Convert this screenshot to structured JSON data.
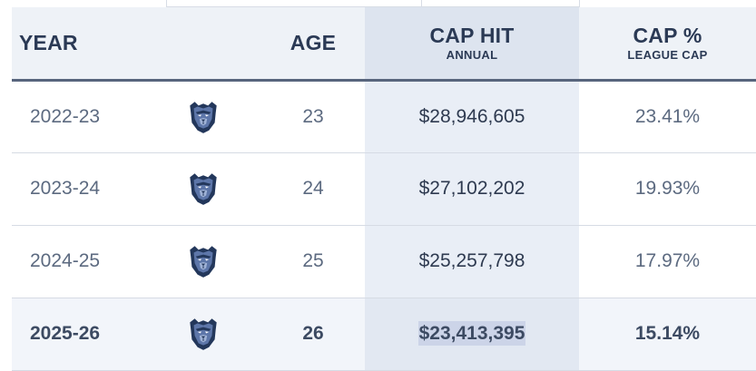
{
  "table": {
    "headers": {
      "year": "YEAR",
      "team": "",
      "age": "AGE",
      "cap_hit": "CAP HIT",
      "cap_hit_sub": "ANNUAL",
      "cap_pct": "CAP %",
      "cap_pct_sub": "LEAGUE CAP"
    },
    "rows": [
      {
        "year": "2022-23",
        "team_icon": "grizzlies-logo-icon",
        "age": "23",
        "cap_hit": "$28,946,605",
        "cap_pct": "23.41%"
      },
      {
        "year": "2023-24",
        "team_icon": "grizzlies-logo-icon",
        "age": "24",
        "cap_hit": "$27,102,202",
        "cap_pct": "19.93%"
      },
      {
        "year": "2024-25",
        "team_icon": "grizzlies-logo-icon",
        "age": "25",
        "cap_hit": "$25,257,798",
        "cap_pct": "17.97%"
      },
      {
        "year": "2025-26",
        "team_icon": "grizzlies-logo-icon",
        "age": "26",
        "cap_hit": "$23,413,395",
        "cap_pct": "15.14%"
      }
    ]
  },
  "colors": {
    "header_text": "#2b3a55",
    "body_text": "#5c6a80",
    "logo_navy": "#23375b",
    "logo_blue": "#5d76a9",
    "header_bg": "#eef2f7",
    "cap_column_bg": "#e9eef6",
    "highlight": "#ccd4e8"
  }
}
